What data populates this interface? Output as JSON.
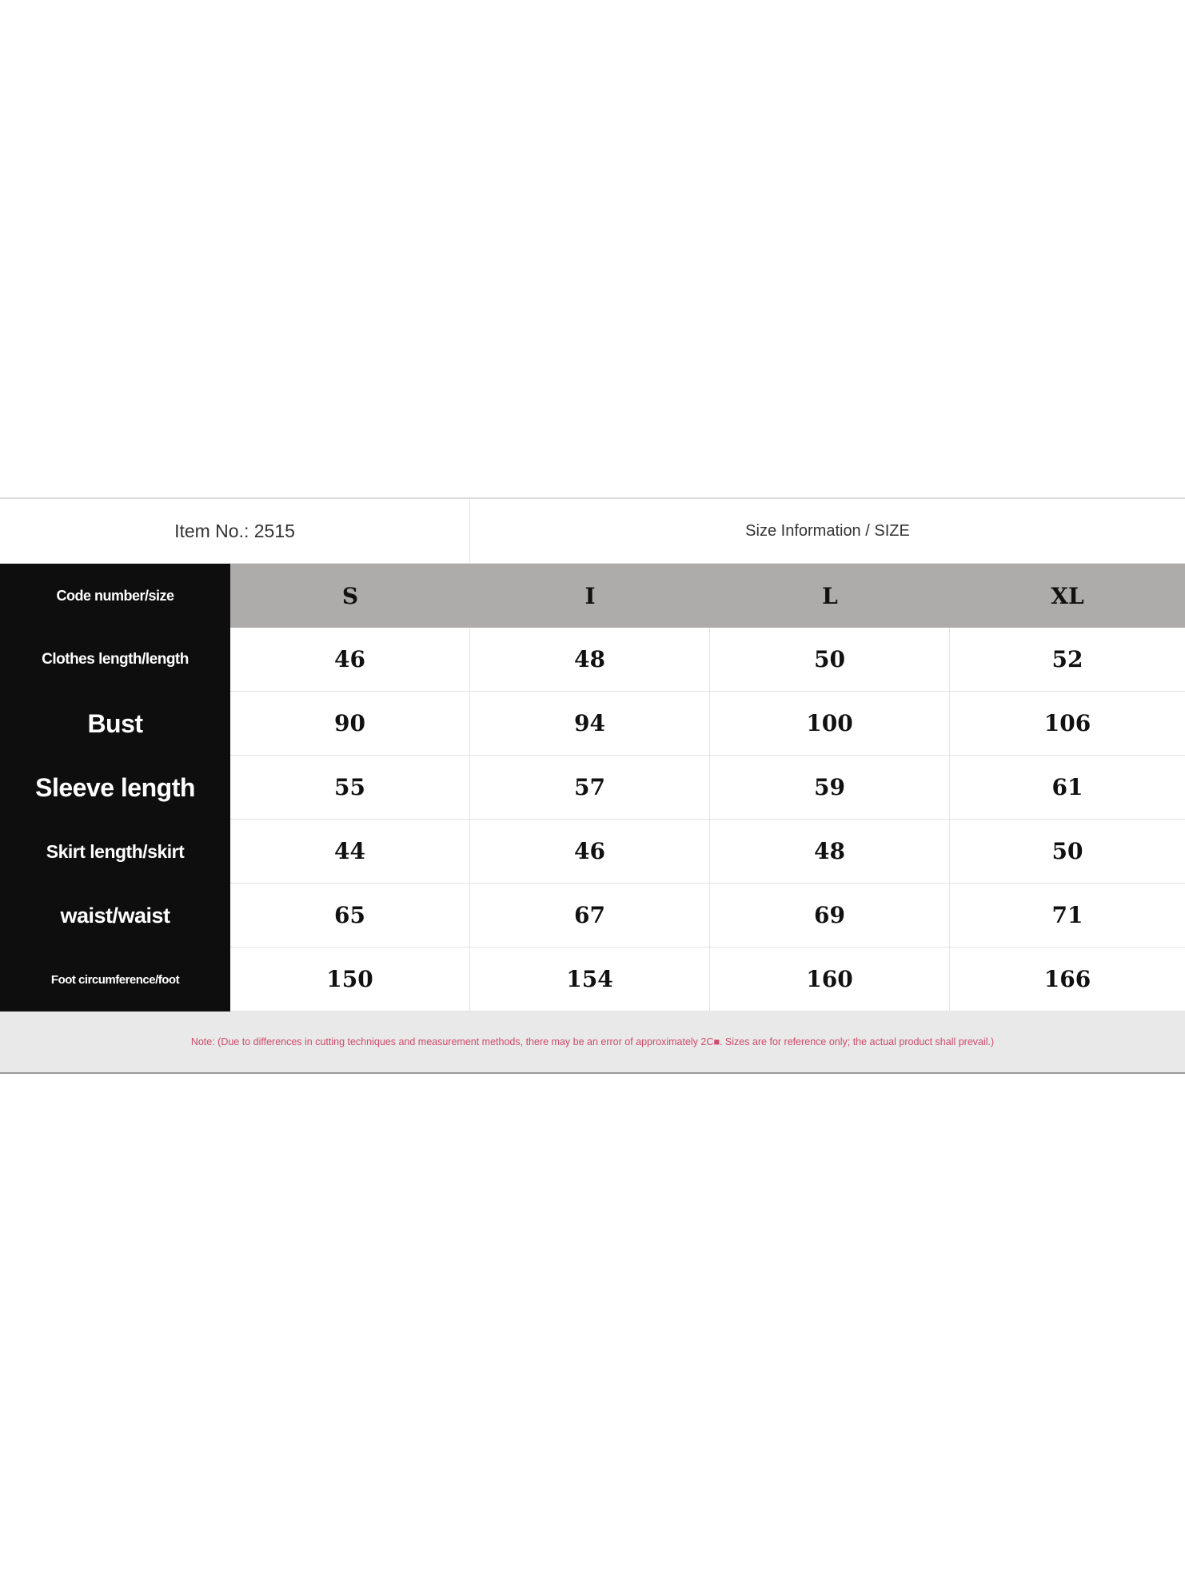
{
  "header": {
    "item_no": "Item No.: 2515",
    "size_info": "Size Information / SIZE"
  },
  "table": {
    "corner": "Code number/size",
    "sizes": [
      "S",
      "I",
      "L",
      "XL"
    ],
    "rows": [
      {
        "label": "Clothes length/length",
        "values": [
          "46",
          "48",
          "50",
          "52"
        ]
      },
      {
        "label": "Bust",
        "values": [
          "90",
          "94",
          "100",
          "106"
        ]
      },
      {
        "label": "Sleeve length",
        "values": [
          "55",
          "57",
          "59",
          "61"
        ]
      },
      {
        "label": "Skirt length/skirt",
        "values": [
          "44",
          "46",
          "48",
          "50"
        ]
      },
      {
        "label": "waist/waist",
        "values": [
          "65",
          "67",
          "69",
          "71"
        ]
      },
      {
        "label": "Foot circumference/foot",
        "values": [
          "150",
          "154",
          "160",
          "166"
        ]
      }
    ]
  },
  "note": "Note: (Due to differences in cutting techniques and measurement methods, there may be an error of approximately 2C■. Sizes are for reference only; the actual product shall prevail.)"
}
